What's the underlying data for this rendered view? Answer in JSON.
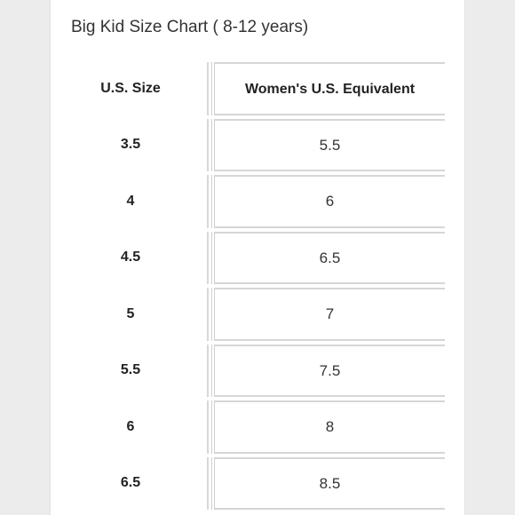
{
  "title": "Big Kid Size Chart ( 8-12 years)",
  "table": {
    "headers": [
      "U.S. Size",
      "Women's U.S. Equivalent"
    ],
    "rows": [
      [
        "3.5",
        "5.5"
      ],
      [
        "4",
        "6"
      ],
      [
        "4.5",
        "6.5"
      ],
      [
        "5",
        "7"
      ],
      [
        "5.5",
        "7.5"
      ],
      [
        "6",
        "8"
      ],
      [
        "6.5",
        "8.5"
      ]
    ]
  }
}
